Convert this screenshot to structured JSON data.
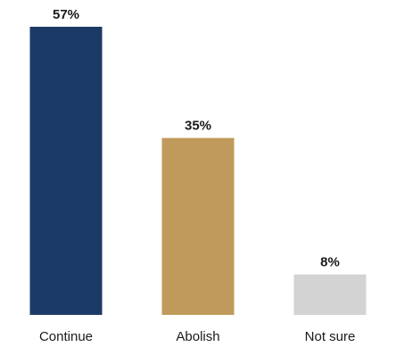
{
  "chart_data": {
    "type": "bar",
    "categories": [
      "Continue",
      "Abolish",
      "Not sure"
    ],
    "values": [
      57,
      35,
      8
    ],
    "value_labels": [
      "57%",
      "35%",
      "8%"
    ],
    "colors": [
      "#1c3a66",
      "#c09a5a",
      "#d3d3d3"
    ],
    "title": "",
    "xlabel": "",
    "ylabel": "",
    "ylim": [
      0,
      57
    ],
    "grid": false,
    "legend": "none"
  }
}
